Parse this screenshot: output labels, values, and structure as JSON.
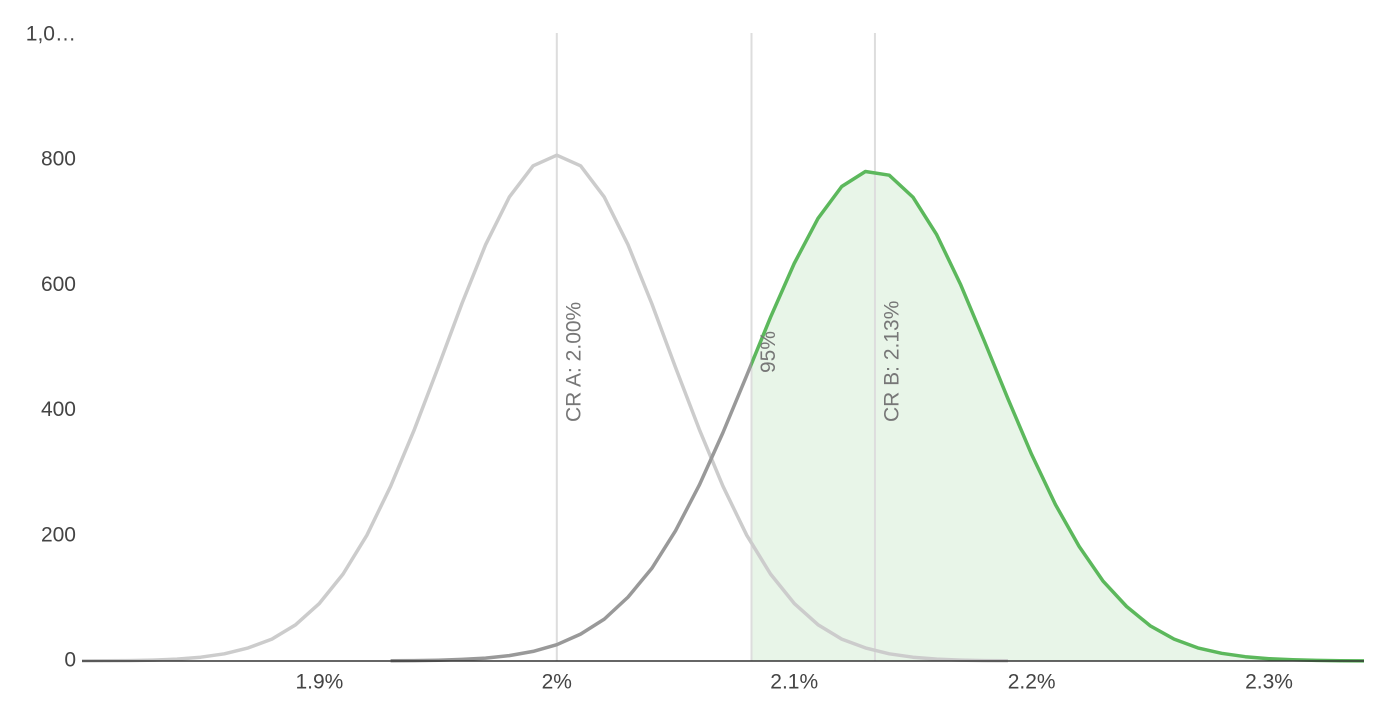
{
  "chart_data": {
    "type": "line",
    "x": [
      1.8,
      1.81,
      1.82,
      1.83,
      1.84,
      1.85,
      1.86,
      1.87,
      1.88,
      1.89,
      1.9,
      1.91,
      1.92,
      1.93,
      1.94,
      1.95,
      1.96,
      1.97,
      1.98,
      1.99,
      2.0,
      2.01,
      2.02,
      2.03,
      2.04,
      2.05,
      2.06,
      2.07,
      2.08,
      2.09,
      2.1,
      2.11,
      2.12,
      2.13,
      2.14,
      2.15,
      2.16,
      2.17,
      2.18,
      2.19,
      2.2,
      2.21,
      2.22,
      2.23,
      2.24,
      2.25,
      2.26,
      2.27,
      2.28,
      2.29,
      2.3,
      2.31,
      2.32,
      2.33,
      2.34
    ],
    "series": [
      {
        "name": "A",
        "color": "#cccccc",
        "values": [
          0.1,
          0.3,
          0.7,
          1.5,
          3.1,
          6.1,
          11.5,
          21,
          35,
          58,
          92,
          139,
          201,
          279,
          370,
          469,
          571,
          665,
          741,
          791,
          808,
          791,
          741,
          665,
          571,
          469,
          370,
          279,
          201,
          139,
          92,
          58,
          35,
          21,
          11.5,
          6.1,
          3.1,
          1.5,
          0.7,
          0.3,
          null,
          null,
          null,
          null,
          null,
          null,
          null,
          null,
          null,
          null,
          null,
          null,
          null,
          null,
          null
        ]
      },
      {
        "name": "B",
        "color": "#5cb85c",
        "color_below": "#999999",
        "values": [
          null,
          null,
          null,
          null,
          null,
          null,
          null,
          null,
          null,
          null,
          null,
          null,
          null,
          0.3,
          0.6,
          1.2,
          2.5,
          4.7,
          8.7,
          15.3,
          26,
          43,
          67,
          102,
          148,
          208,
          281,
          365,
          456,
          549,
          635,
          707,
          758,
          782,
          776,
          741,
          681,
          602,
          512,
          419,
          330,
          250,
          183,
          128,
          87,
          56,
          35,
          21,
          12.3,
          6.8,
          3.7,
          1.9,
          0.9,
          0.4,
          0.2
        ]
      }
    ],
    "annotations": [
      {
        "x": 2.0,
        "label": "CR A: 2.00%"
      },
      {
        "x": 2.082,
        "label": "95%"
      },
      {
        "x": 2.134,
        "label": "CR B: 2.13%"
      }
    ],
    "xlim": [
      1.8,
      2.34
    ],
    "xticks": [
      {
        "value": 1.9,
        "label": "1.9%"
      },
      {
        "value": 2.0,
        "label": "2%"
      },
      {
        "value": 2.1,
        "label": "2.1%"
      },
      {
        "value": 2.2,
        "label": "2.2%"
      },
      {
        "value": 2.3,
        "label": "2.3%"
      }
    ],
    "ylim": [
      0,
      1000
    ],
    "yticks": [
      0,
      200,
      400,
      600,
      800,
      {
        "value": 1000,
        "label": "1,0…"
      }
    ]
  }
}
